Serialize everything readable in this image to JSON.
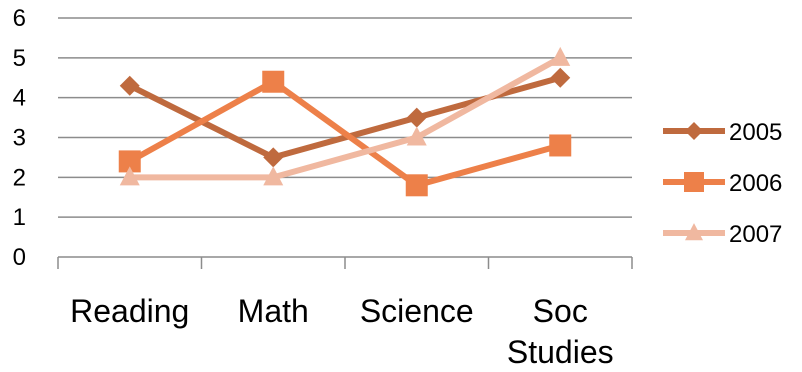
{
  "chart_data": {
    "type": "line",
    "categories": [
      "Reading",
      "Math",
      "Science",
      "Soc Studies"
    ],
    "series": [
      {
        "name": "2005",
        "values": [
          4.3,
          2.5,
          3.5,
          4.5
        ],
        "color": "#bf6a3e",
        "marker": "diamond"
      },
      {
        "name": "2006",
        "values": [
          2.4,
          4.4,
          1.8,
          2.8
        ],
        "color": "#ed8049",
        "marker": "square"
      },
      {
        "name": "2007",
        "values": [
          2.0,
          2.0,
          3.0,
          5.0
        ],
        "color": "#f0b8a0",
        "marker": "triangle"
      }
    ],
    "ylim": [
      0,
      6
    ],
    "yticks": [
      "0",
      "1",
      "2",
      "3",
      "4",
      "5",
      "6"
    ],
    "grid": true,
    "legend": "right"
  }
}
